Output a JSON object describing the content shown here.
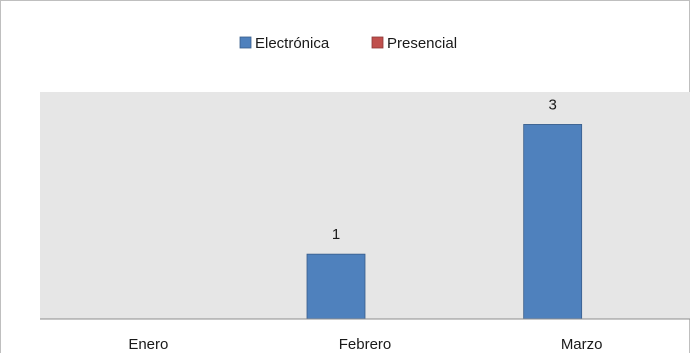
{
  "chart_data": {
    "type": "bar",
    "categories": [
      "Enero",
      "Febrero",
      "Marzo"
    ],
    "series": [
      {
        "name": "Electrónica",
        "color": "#4f81bd",
        "values": [
          0,
          1,
          3
        ]
      },
      {
        "name": "Presencial",
        "color": "#c0504d",
        "values": [
          0,
          0,
          0
        ]
      }
    ],
    "data_labels": [
      "",
      "1",
      "3"
    ],
    "ylim": [
      0,
      3.5
    ],
    "grid": false,
    "legend": "top-center",
    "plot_background": "#e6e6e6"
  }
}
